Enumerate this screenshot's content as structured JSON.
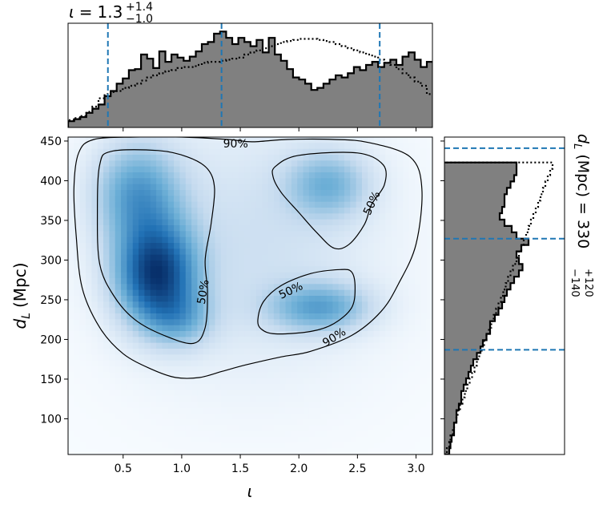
{
  "chart_data": [
    {
      "type": "heatmap",
      "name": "joint-posterior",
      "xlabel": "ι",
      "ylabel_main": "d",
      "ylabel_sub": "L",
      "ylabel_unit": "(Mpc)",
      "xlim": [
        0.03,
        3.14
      ],
      "ylim": [
        55,
        455
      ],
      "xticks": [
        0.5,
        1.0,
        1.5,
        2.0,
        2.5,
        3.0
      ],
      "xtick_labels": [
        "0.5",
        "1.0",
        "1.5",
        "2.0",
        "2.5",
        "3.0"
      ],
      "yticks": [
        100,
        150,
        200,
        250,
        300,
        350,
        400,
        450
      ],
      "ytick_labels": [
        "100",
        "150",
        "200",
        "250",
        "300",
        "350",
        "400",
        "450"
      ],
      "colormap": [
        "#f7fbff",
        "#c6dbef",
        "#6baed6",
        "#2171b5",
        "#08306b"
      ],
      "density_peaks": [
        {
          "x": 0.78,
          "y": 282,
          "sx": 0.24,
          "sy": 45,
          "w": 1.0
        },
        {
          "x": 0.62,
          "y": 385,
          "sx": 0.26,
          "sy": 45,
          "w": 0.55
        },
        {
          "x": 1.0,
          "y": 225,
          "sx": 0.2,
          "sy": 25,
          "w": 0.3
        },
        {
          "x": 2.18,
          "y": 240,
          "sx": 0.3,
          "sy": 22,
          "w": 0.5
        },
        {
          "x": 2.25,
          "y": 395,
          "sx": 0.25,
          "sy": 30,
          "w": 0.42
        },
        {
          "x": 1.6,
          "y": 320,
          "sx": 0.75,
          "sy": 110,
          "w": 0.2
        }
      ],
      "contours": [
        {
          "label": "90%",
          "points": [
            [
              0.08,
              390
            ],
            [
              0.12,
              435
            ],
            [
              0.25,
              452
            ],
            [
              0.6,
              455
            ],
            [
              1.0,
              455
            ],
            [
              1.4,
              452
            ],
            [
              1.6,
              449
            ],
            [
              1.9,
              452
            ],
            [
              2.3,
              452
            ],
            [
              2.6,
              448
            ],
            [
              2.95,
              430
            ],
            [
              3.05,
              390
            ],
            [
              3.0,
              320
            ],
            [
              2.85,
              270
            ],
            [
              2.7,
              235
            ],
            [
              2.45,
              205
            ],
            [
              2.1,
              185
            ],
            [
              1.85,
              178
            ],
            [
              1.55,
              168
            ],
            [
              1.35,
              160
            ],
            [
              1.15,
              152
            ],
            [
              0.95,
              152
            ],
            [
              0.75,
              162
            ],
            [
              0.5,
              182
            ],
            [
              0.3,
              215
            ],
            [
              0.15,
              265
            ],
            [
              0.1,
              330
            ]
          ],
          "label_pos": [
            [
              1.46,
              447
            ],
            [
              2.3,
              203
            ]
          ]
        },
        {
          "label": "50%",
          "points": [
            [
              0.3,
              420
            ],
            [
              0.4,
              437
            ],
            [
              0.8,
              438
            ],
            [
              1.05,
              430
            ],
            [
              1.22,
              415
            ],
            [
              1.28,
              390
            ],
            [
              1.25,
              345
            ],
            [
              1.2,
              300
            ],
            [
              1.22,
              260
            ],
            [
              1.2,
              215
            ],
            [
              1.1,
              195
            ],
            [
              0.85,
              205
            ],
            [
              0.6,
              225
            ],
            [
              0.42,
              255
            ],
            [
              0.3,
              295
            ],
            [
              0.28,
              360
            ]
          ],
          "label_pos": [
            [
              1.18,
              260
            ]
          ]
        },
        {
          "label": "50%",
          "points": [
            [
              1.8,
              418
            ],
            [
              2.0,
              432
            ],
            [
              2.5,
              435
            ],
            [
              2.72,
              420
            ],
            [
              2.73,
              395
            ],
            [
              2.62,
              370
            ],
            [
              2.56,
              345
            ],
            [
              2.43,
              320
            ],
            [
              2.3,
              315
            ],
            [
              2.15,
              335
            ],
            [
              2.0,
              360
            ],
            [
              1.85,
              385
            ],
            [
              1.78,
              405
            ]
          ],
          "label_pos": [
            [
              2.62,
              372
            ]
          ]
        },
        {
          "label": "50%",
          "points": [
            [
              1.65,
              225
            ],
            [
              1.7,
              248
            ],
            [
              1.85,
              268
            ],
            [
              2.1,
              283
            ],
            [
              2.35,
              288
            ],
            [
              2.45,
              285
            ],
            [
              2.48,
              265
            ],
            [
              2.45,
              240
            ],
            [
              2.3,
              220
            ],
            [
              2.1,
              210
            ],
            [
              1.8,
              207
            ],
            [
              1.68,
              213
            ]
          ],
          "label_pos": [
            [
              1.93,
              262
            ]
          ]
        }
      ]
    },
    {
      "type": "histogram",
      "name": "iota-marginal",
      "title_symbol": "ι",
      "title_value": "1.3",
      "title_upper": "+1.4",
      "title_lower": "−1.0",
      "bin_start": 0.03,
      "bin_width": 0.0519,
      "values": [
        0.06,
        0.08,
        0.1,
        0.14,
        0.18,
        0.22,
        0.3,
        0.35,
        0.42,
        0.47,
        0.55,
        0.56,
        0.7,
        0.66,
        0.57,
        0.73,
        0.63,
        0.7,
        0.67,
        0.64,
        0.68,
        0.73,
        0.8,
        0.82,
        0.9,
        0.92,
        0.86,
        0.8,
        0.86,
        0.82,
        0.78,
        0.84,
        0.72,
        0.86,
        0.7,
        0.64,
        0.56,
        0.48,
        0.46,
        0.42,
        0.36,
        0.38,
        0.42,
        0.46,
        0.5,
        0.48,
        0.52,
        0.58,
        0.55,
        0.6,
        0.63,
        0.58,
        0.62,
        0.65,
        0.6,
        0.68,
        0.72,
        0.65,
        0.58,
        0.63,
        0.57,
        0.6
      ],
      "prior_values": [
        0.07,
        0.09,
        0.11,
        0.15,
        0.2,
        0.28,
        0.32,
        0.34,
        0.35,
        0.38,
        0.4,
        0.42,
        0.45,
        0.48,
        0.5,
        0.52,
        0.54,
        0.55,
        0.57,
        0.58,
        0.58,
        0.6,
        0.62,
        0.63,
        0.63,
        0.64,
        0.65,
        0.66,
        0.67,
        0.7,
        0.72,
        0.74,
        0.76,
        0.78,
        0.8,
        0.82,
        0.83,
        0.84,
        0.85,
        0.85,
        0.85,
        0.84,
        0.83,
        0.82,
        0.8,
        0.78,
        0.76,
        0.74,
        0.72,
        0.7,
        0.68,
        0.65,
        0.62,
        0.6,
        0.56,
        0.52,
        0.48,
        0.44,
        0.4,
        0.32,
        0.25,
        0.18
      ],
      "quantiles": [
        0.37,
        1.34,
        2.69
      ],
      "ymax": 1.0
    },
    {
      "type": "histogram",
      "name": "dl-marginal",
      "title_symbol": "d",
      "title_sub": "L",
      "title_unit": "(Mpc)",
      "title_value": "330",
      "title_upper": "+120",
      "title_lower": "−140",
      "bin_start": 55,
      "bin_width": 8,
      "values": [
        0.04,
        0.05,
        0.06,
        0.08,
        0.08,
        0.1,
        0.1,
        0.12,
        0.14,
        0.14,
        0.16,
        0.18,
        0.2,
        0.22,
        0.24,
        0.27,
        0.3,
        0.32,
        0.35,
        0.38,
        0.38,
        0.42,
        0.45,
        0.48,
        0.5,
        0.52,
        0.55,
        0.58,
        0.62,
        0.65,
        0.62,
        0.6,
        0.64,
        0.7,
        0.6,
        0.56,
        0.5,
        0.46,
        0.48,
        0.5,
        0.5,
        0.52,
        0.55,
        0.58,
        0.6,
        0.6
      ],
      "prior_values": [
        0.02,
        0.04,
        0.05,
        0.07,
        0.08,
        0.1,
        0.11,
        0.13,
        0.15,
        0.17,
        0.19,
        0.21,
        0.23,
        0.25,
        0.27,
        0.29,
        0.31,
        0.33,
        0.35,
        0.37,
        0.39,
        0.41,
        0.43,
        0.45,
        0.47,
        0.49,
        0.51,
        0.53,
        0.55,
        0.57,
        0.6,
        0.62,
        0.64,
        0.66,
        0.68,
        0.7,
        0.72,
        0.74,
        0.76,
        0.78,
        0.8,
        0.82,
        0.84,
        0.86,
        0.88,
        0.9
      ],
      "quantiles": [
        187,
        327,
        441
      ],
      "xmax": 1.0
    }
  ],
  "colors": {
    "hist_fill": "#808080",
    "hist_edge": "#000000",
    "quantile_line": "#1f77b4",
    "contour_line": "#000000"
  }
}
